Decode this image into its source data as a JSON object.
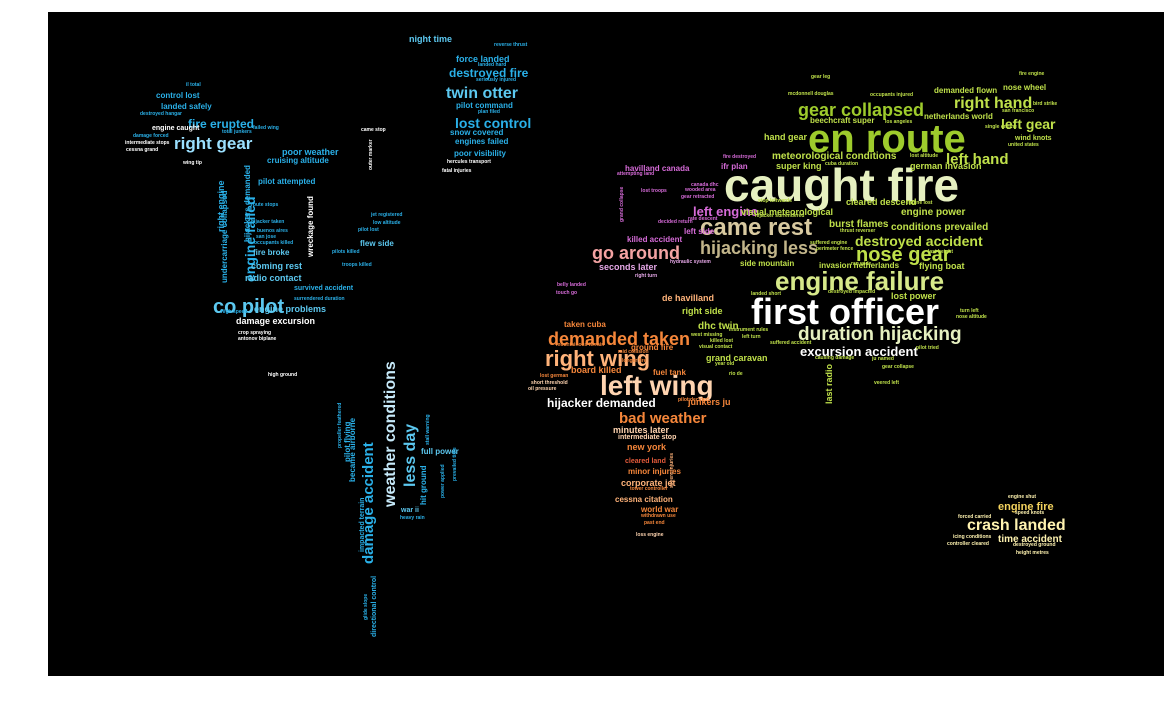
{
  "words": {
    "caught_fire": "caught fire",
    "en_route": "en route",
    "first_officer": "first officer",
    "engine_failure": "engine failure",
    "came_rest": "came rest",
    "left_wing": "left wing",
    "co_pilot": "co pilot",
    "right_gear": "right gear",
    "right_wing": "right wing",
    "go_around": "go around",
    "hijacking_less": "hijacking less",
    "nose_gear": "nose gear",
    "duration_hijacking": "duration hijacking",
    "demanded_taken": "demanded taken",
    "gear_collapsed": "gear collapsed",
    "twin_otter": "twin otter",
    "lost_control": "lost control",
    "engine_failed": "engine failed",
    "weather_conditions": "weather conditions",
    "damage_accident": "damage accident",
    "less_day": "less day",
    "crash_landed": "crash landed",
    "bad_weather": "bad weather",
    "hijacker_demanded": "hijacker demanded",
    "right_hand": "right hand",
    "left_hand": "left hand",
    "destroyed_fire": "destroyed fire",
    "fire_erupted": "fire erupted",
    "destroyed_accident": "destroyed accident",
    "excursion_accident": "excursion accident",
    "left_gear": "left gear",
    "left_engine": "left engine",
    "force_landed": "force landed",
    "night_time": "night time",
    "pilot_command": "pilot command",
    "snow_covered": "snow covered",
    "engines_failed": "engines failed",
    "poor_visibility": "poor visibility",
    "control_lost": "control lost",
    "landed_safely": "landed safely",
    "engine_caught": "engine caught",
    "poor_weather": "poor weather",
    "cruising_altitude": "cruising altitude",
    "pilot_attempted": "pilot attempted",
    "right_engine": "right engine",
    "undercarriage_collapsed": "undercarriage collapsed",
    "hijackers_demanded": "hijackers demanded",
    "wreckage_found": "wreckage found",
    "fire_broke": "fire broke",
    "coming_rest": "coming rest",
    "radio_contact": "radio contact",
    "flew_side": "flew side",
    "survived_accident": "survived accident",
    "engine_problems": "engine problems",
    "damage_excursion": "damage excursion",
    "meteorological_conditions": "meteorological conditions",
    "hand_gear": "hand gear",
    "super_king": "super king",
    "visual_meteorological": "visual meteorological",
    "cleared_descend": "cleared descend",
    "burst_flames": "burst flames",
    "conditions_prevailed": "conditions prevailed",
    "engine_power": "engine power",
    "german_invasion": "german invasion",
    "invasion_netherlands": "invasion netherlands",
    "flying_boat": "flying boat",
    "lost_power": "lost power",
    "side_mountain": "side mountain",
    "netherlands_world": "netherlands world",
    "beechcraft_super": "beechcraft super",
    "demanded_flown": "demanded flown",
    "nose_wheel": "nose wheel",
    "wind_knots": "wind knots",
    "seconds_later": "seconds later",
    "killed_accident": "killed accident",
    "left_side": "left side",
    "havilland_canada": "havilland canada",
    "ifr_plan": "ifr plan",
    "de_havilland": "de havilland",
    "right_side": "right side",
    "dhc_twin": "dhc twin",
    "grand_caravan": "grand caravan",
    "last_radio": "last radio",
    "taken_cuba": "taken cuba",
    "board_killed": "board killed",
    "fuel_tank": "fuel tank",
    "ground_fire": "ground fire",
    "junkers_ju": "junkers ju",
    "minutes_later": "minutes later",
    "intermediate_stop": "intermediate stop",
    "new_york": "new york",
    "minor_injuries": "minor injuries",
    "corporate_jet": "corporate jet",
    "cessna_citation": "cessna citation",
    "world_war": "world war",
    "cleared_land": "cleared land",
    "engine_fire": "engine fire",
    "time_accident": "time accident",
    "full_power": "full power",
    "became_airborne": "became airborne",
    "pilot_flying": "pilot flying",
    "impacted_terrain": "impacted terrain",
    "directional_control": "directional control",
    "hit_ground": "hit ground",
    "war_ii": "war ii",
    "small": [
      "reverse thrust",
      "landed hard",
      "seriously injured",
      "plan filed",
      "il total",
      "destroyed hangar",
      "damage forced",
      "intermediate stops",
      "cessna grand",
      "total junkers",
      "failed wing",
      "came stop",
      "outer marker",
      "wing tip",
      "hercules transport",
      "fatal injuries",
      "route stops",
      "hijacker taken",
      "buenos aires",
      "san jose",
      "occupants killed",
      "jet registered",
      "low altitude",
      "pilot lost",
      "pilots killed",
      "troops killed",
      "surrendered duration",
      "high speed",
      "crop spraying",
      "antonov biplane",
      "high ground",
      "propeller feathered",
      "stall warning",
      "heavy rain",
      "glide slope",
      "power applied",
      "prevailed time",
      "gear leg",
      "mcdonnell douglas",
      "occupants injured",
      "fire engine",
      "bird strike",
      "san francisco",
      "los angeles",
      "single engine",
      "united states",
      "fire destroyed",
      "attempting land",
      "lost troops",
      "gear retracted",
      "wooded area",
      "decided return",
      "rate descent",
      "hydraulic system",
      "right turn",
      "belly landed",
      "touch go",
      "lost altitude",
      "cuba duration",
      "stop leftwards",
      "thrust reverser",
      "suffered engine",
      "perimeter fence",
      "ran wide",
      "last height",
      "landed short",
      "destroyed impacted",
      "instrument rules",
      "west missing",
      "killed lost",
      "visual contact",
      "left turn",
      "suffered accident",
      "turn left",
      "nose altitude",
      "pilot tried",
      "causing damage",
      "ju named",
      "year old",
      "gear collapse",
      "rio de",
      "veered left",
      "mountainous terrain",
      "mid collision",
      "longer fire",
      "lost german",
      "short threshold",
      "oil pressure",
      "engine shut",
      "speed knots",
      "forced carried",
      "icing conditions",
      "controller cleared",
      "destroyed ground",
      "height metres",
      "tower controller",
      "withdrawn use",
      "past end",
      "loss engine",
      "severe injuries",
      "grand collapse",
      "engine lost",
      "canada dhc",
      "hijacker surrendered",
      "pilot decided"
    ]
  }
}
